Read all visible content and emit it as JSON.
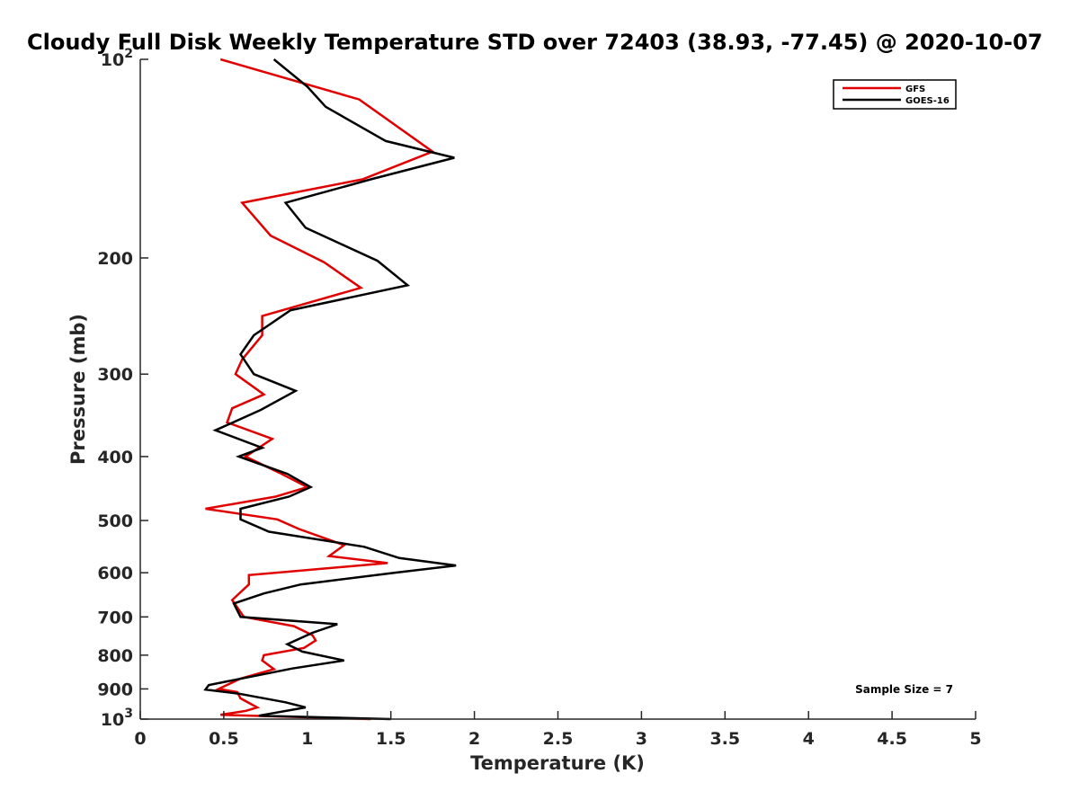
{
  "chart_data": {
    "type": "line",
    "title": "Cloudy Full Disk Weekly Temperature STD over 72403 (38.93, -77.45) @ 2020-10-07",
    "xlabel": "Temperature (K)",
    "ylabel": "Pressure (mb)",
    "xlim": [
      0,
      5
    ],
    "ylim": [
      100,
      1000
    ],
    "y_scale": "log",
    "y_reversed": true,
    "grid": false,
    "legend_position": "top-right",
    "x_ticks": [
      0,
      0.5,
      1,
      1.5,
      2,
      2.5,
      3,
      3.5,
      4,
      4.5,
      5
    ],
    "x_tick_labels": [
      "0",
      "0.5",
      "1",
      "1.5",
      "2",
      "2.5",
      "3",
      "3.5",
      "4",
      "4.5",
      "5"
    ],
    "y_ticks": [
      100,
      200,
      300,
      400,
      500,
      600,
      700,
      800,
      900,
      1000
    ],
    "y_tick_labels": [
      {
        "base": "10",
        "exp": "2"
      },
      {
        "base": "200",
        "exp": ""
      },
      {
        "base": "300",
        "exp": ""
      },
      {
        "base": "400",
        "exp": ""
      },
      {
        "base": "500",
        "exp": ""
      },
      {
        "base": "600",
        "exp": ""
      },
      {
        "base": "700",
        "exp": ""
      },
      {
        "base": "800",
        "exp": ""
      },
      {
        "base": "900",
        "exp": ""
      },
      {
        "base": "10",
        "exp": "3"
      }
    ],
    "annotation": "Sample Size = 7",
    "series": [
      {
        "name": "GFS",
        "color": "#e00000",
        "points": [
          [
            0.48,
            100
          ],
          [
            1.31,
            115
          ],
          [
            1.75,
            138
          ],
          [
            1.33,
            152
          ],
          [
            0.61,
            165
          ],
          [
            0.78,
            185
          ],
          [
            1.1,
            203
          ],
          [
            1.32,
            222
          ],
          [
            0.73,
            245
          ],
          [
            0.73,
            262
          ],
          [
            0.61,
            285
          ],
          [
            0.57,
            300
          ],
          [
            0.74,
            322
          ],
          [
            0.55,
            338
          ],
          [
            0.52,
            355
          ],
          [
            0.79,
            376
          ],
          [
            0.63,
            400
          ],
          [
            0.83,
            423
          ],
          [
            1.0,
            445
          ],
          [
            0.81,
            460
          ],
          [
            0.39,
            480
          ],
          [
            0.82,
            498
          ],
          [
            0.95,
            515
          ],
          [
            1.22,
            545
          ],
          [
            1.13,
            566
          ],
          [
            1.48,
            580
          ],
          [
            0.65,
            605
          ],
          [
            0.65,
            625
          ],
          [
            0.55,
            660
          ],
          [
            0.62,
            700
          ],
          [
            0.92,
            723
          ],
          [
            1.03,
            746
          ],
          [
            1.05,
            760
          ],
          [
            0.98,
            780
          ],
          [
            0.74,
            800
          ],
          [
            0.73,
            815
          ],
          [
            0.8,
            840
          ],
          [
            0.6,
            868
          ],
          [
            0.47,
            900
          ],
          [
            0.58,
            910
          ],
          [
            0.6,
            930
          ],
          [
            0.7,
            960
          ],
          [
            0.63,
            972
          ],
          [
            0.48,
            985
          ],
          [
            1.38,
            1000
          ]
        ]
      },
      {
        "name": "GOES-16",
        "color": "#000000",
        "points": [
          [
            0.8,
            100
          ],
          [
            1.0,
            110
          ],
          [
            1.11,
            118
          ],
          [
            1.47,
            133
          ],
          [
            1.88,
            141
          ],
          [
            1.38,
            152
          ],
          [
            0.87,
            165
          ],
          [
            0.99,
            180
          ],
          [
            1.42,
            202
          ],
          [
            1.6,
            220
          ],
          [
            0.9,
            240
          ],
          [
            0.68,
            262
          ],
          [
            0.6,
            280
          ],
          [
            0.68,
            300
          ],
          [
            0.93,
            318
          ],
          [
            0.72,
            340
          ],
          [
            0.45,
            365
          ],
          [
            0.73,
            388
          ],
          [
            0.59,
            400
          ],
          [
            0.88,
            425
          ],
          [
            1.02,
            445
          ],
          [
            0.89,
            460
          ],
          [
            0.6,
            480
          ],
          [
            0.6,
            498
          ],
          [
            0.77,
            520
          ],
          [
            1.34,
            548
          ],
          [
            1.55,
            570
          ],
          [
            1.89,
            585
          ],
          [
            1.52,
            600
          ],
          [
            0.96,
            625
          ],
          [
            0.74,
            645
          ],
          [
            0.56,
            668
          ],
          [
            0.6,
            700
          ],
          [
            1.18,
            718
          ],
          [
            1.03,
            740
          ],
          [
            0.88,
            770
          ],
          [
            0.97,
            790
          ],
          [
            1.22,
            815
          ],
          [
            0.91,
            838
          ],
          [
            0.41,
            888
          ],
          [
            0.39,
            902
          ],
          [
            0.59,
            915
          ],
          [
            0.87,
            943
          ],
          [
            0.99,
            960
          ],
          [
            0.71,
            988
          ],
          [
            1.5,
            1000
          ]
        ]
      }
    ]
  }
}
